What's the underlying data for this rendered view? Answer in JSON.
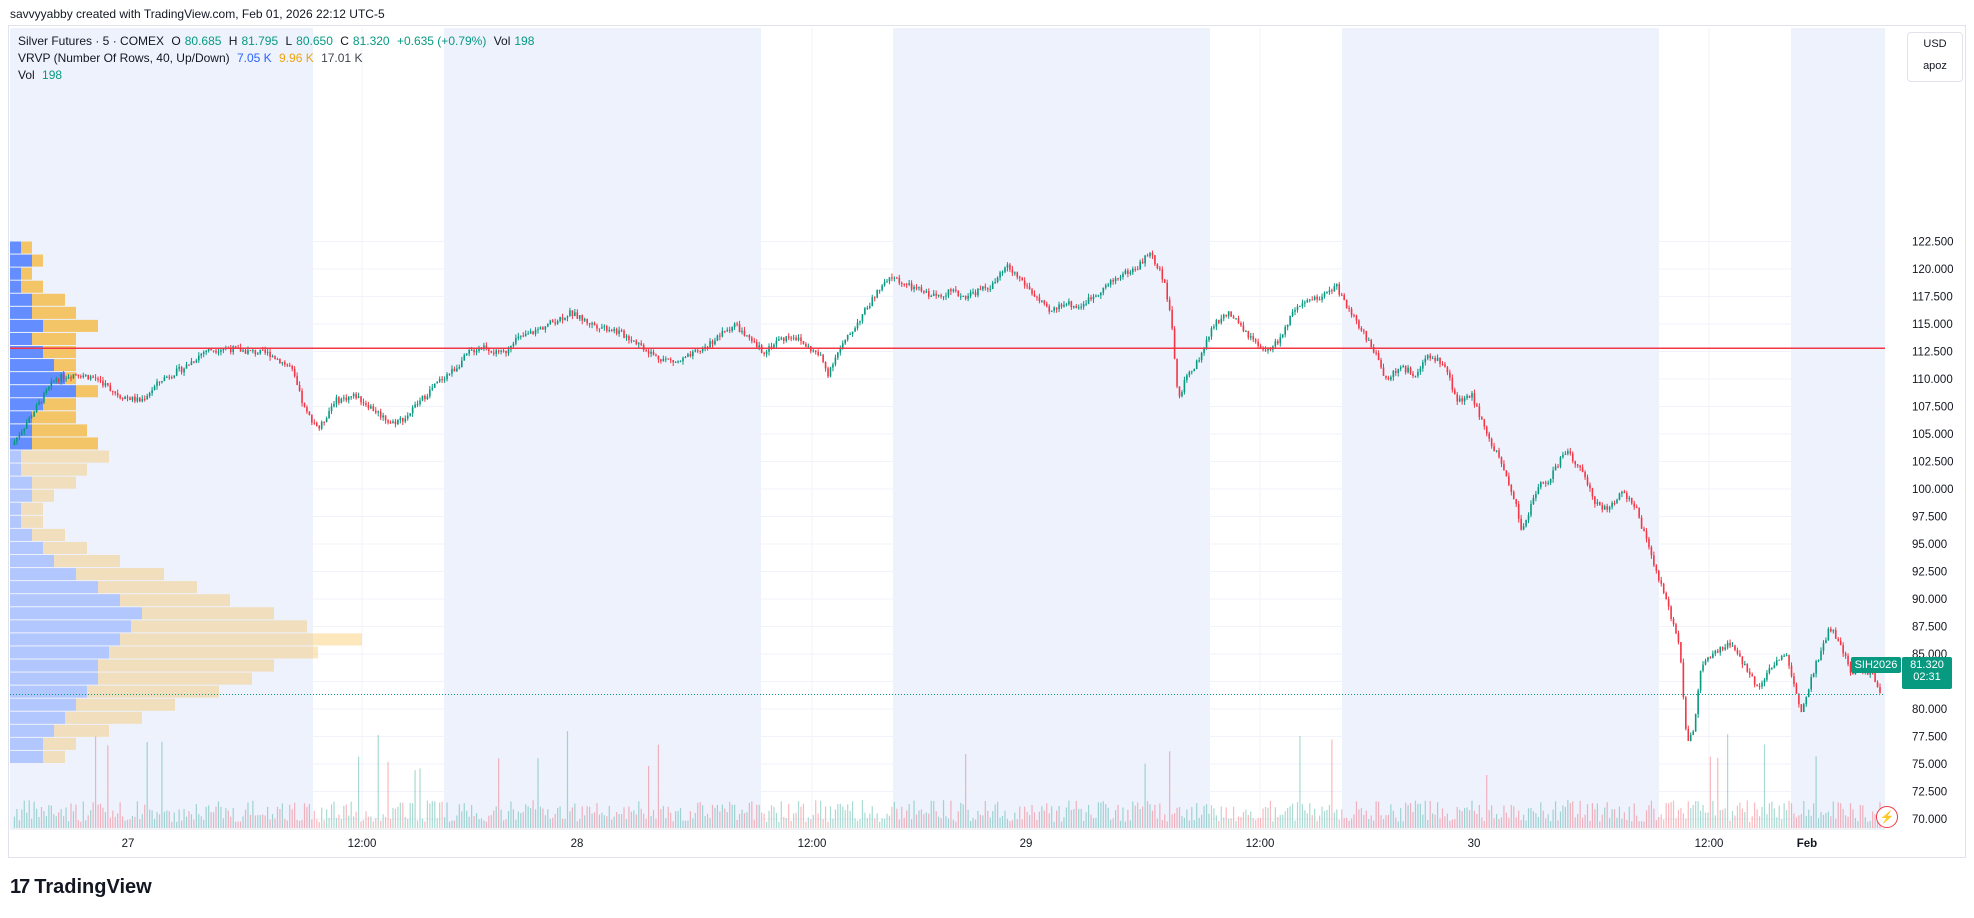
{
  "attribution": "savvyyabby created with TradingView.com, Feb 01, 2026 22:12 UTC-5",
  "legend": {
    "symbol": "Silver Futures · 5 · COMEX",
    "o_label": "O",
    "o_value": "80.685",
    "h_label": "H",
    "h_value": "81.795",
    "l_label": "L",
    "l_value": "80.650",
    "c_label": "C",
    "c_value": "81.320",
    "change": "+0.635 (+0.79%)",
    "vol_label": "Vol",
    "vol_value": "198",
    "vrvp_label": "VRVP (Number Of Rows, 40, Up/Down)",
    "vrvp_up": "7.05 K",
    "vrvp_down": "9.96 K",
    "vrvp_total": "17.01 K",
    "vol2_label": "Vol",
    "vol2_value": "198"
  },
  "unit_box": {
    "currency": "USD",
    "scale": "apoz"
  },
  "price_label": {
    "symbol": "SIH2026",
    "price": "81.320",
    "countdown": "02:31"
  },
  "footer": {
    "brand": "TradingView",
    "mark": "17"
  },
  "colors": {
    "up": "#089981",
    "down": "#f23645",
    "vp_up": "#2962ff",
    "vp_down": "#f7a600",
    "session": "#eef2fd",
    "hline": "#f23645"
  },
  "chart_data": {
    "type": "candlestick",
    "title": "Silver Futures · 5 · COMEX",
    "ylim": [
      69.0,
      124.0
    ],
    "y_ticks": [
      "122.500",
      "120.000",
      "117.500",
      "115.000",
      "112.500",
      "110.000",
      "107.500",
      "105.000",
      "102.500",
      "100.000",
      "97.500",
      "95.000",
      "92.500",
      "90.000",
      "87.500",
      "85.000",
      "82.500",
      "80.000",
      "77.500",
      "75.000",
      "72.500",
      "70.000"
    ],
    "x_ticks": [
      "27",
      "12:00",
      "28",
      "12:00",
      "29",
      "12:00",
      "30",
      "12:00",
      "Feb"
    ],
    "horizontal_line": 112.8,
    "last_price": 81.32,
    "price_path": [
      [
        0,
        104
      ],
      [
        3,
        107
      ],
      [
        6,
        110
      ],
      [
        9,
        110.5
      ],
      [
        12,
        110
      ],
      [
        15,
        108.5
      ],
      [
        18,
        108
      ],
      [
        21,
        110
      ],
      [
        24,
        111
      ],
      [
        27,
        112.6
      ],
      [
        30,
        112.8
      ],
      [
        33,
        112.5
      ],
      [
        36,
        112.3
      ],
      [
        39,
        111
      ],
      [
        41,
        107
      ],
      [
        43,
        105.5
      ],
      [
        45,
        108
      ],
      [
        48,
        108.5
      ],
      [
        51,
        107
      ],
      [
        53,
        106
      ],
      [
        55,
        106.5
      ],
      [
        57,
        108
      ],
      [
        60,
        110
      ],
      [
        62,
        111
      ],
      [
        64,
        112.5
      ],
      [
        66,
        113
      ],
      [
        68,
        112.2
      ],
      [
        69,
        112.5
      ],
      [
        70,
        113.5
      ],
      [
        72,
        114
      ],
      [
        75,
        115
      ],
      [
        78,
        116
      ],
      [
        81,
        115
      ],
      [
        84,
        114.5
      ],
      [
        87,
        113.5
      ],
      [
        90,
        112
      ],
      [
        93,
        111.5
      ],
      [
        96,
        112.5
      ],
      [
        99,
        114
      ],
      [
        101,
        115
      ],
      [
        103,
        113.5
      ],
      [
        105,
        112.5
      ],
      [
        107,
        113.5
      ],
      [
        109,
        114
      ],
      [
        111,
        113
      ],
      [
        113,
        112
      ],
      [
        114,
        110.5
      ],
      [
        115,
        112
      ],
      [
        117,
        114
      ],
      [
        119,
        116
      ],
      [
        121,
        118
      ],
      [
        123,
        119.3
      ],
      [
        125,
        118.5
      ],
      [
        127,
        118
      ],
      [
        129,
        117.5
      ],
      [
        131,
        118
      ],
      [
        133,
        117.5
      ],
      [
        135,
        118
      ],
      [
        137,
        118.5
      ],
      [
        139,
        120.2
      ],
      [
        141,
        119
      ],
      [
        143,
        117.5
      ],
      [
        145,
        116
      ],
      [
        147,
        117
      ],
      [
        149,
        116.5
      ],
      [
        151,
        117.5
      ],
      [
        153,
        118.5
      ],
      [
        155,
        119.5
      ],
      [
        157,
        120
      ],
      [
        159,
        121.5
      ],
      [
        161,
        119
      ],
      [
        162,
        115
      ],
      [
        163,
        108
      ],
      [
        164,
        110
      ],
      [
        166,
        112
      ],
      [
        168,
        115
      ],
      [
        170,
        116
      ],
      [
        172,
        114.5
      ],
      [
        174,
        113
      ],
      [
        175,
        112.3
      ],
      [
        177,
        113.5
      ],
      [
        179,
        116
      ],
      [
        181,
        117
      ],
      [
        183,
        117.5
      ],
      [
        185,
        118.5
      ],
      [
        187,
        116
      ],
      [
        189,
        114
      ],
      [
        190,
        113
      ],
      [
        192,
        110
      ],
      [
        194,
        111
      ],
      [
        196,
        110.5
      ],
      [
        198,
        112
      ],
      [
        200,
        111.5
      ],
      [
        202,
        108
      ],
      [
        204,
        108.5
      ],
      [
        206,
        105
      ],
      [
        208,
        102.5
      ],
      [
        210,
        99
      ],
      [
        211,
        96
      ],
      [
        213,
        100
      ],
      [
        215,
        101
      ],
      [
        217,
        103.5
      ],
      [
        219,
        102
      ],
      [
        221,
        99
      ],
      [
        223,
        98
      ],
      [
        225,
        100
      ],
      [
        227,
        98
      ],
      [
        229,
        94
      ],
      [
        231,
        90
      ],
      [
        233,
        86
      ],
      [
        234,
        77
      ],
      [
        235,
        78
      ],
      [
        236,
        84
      ],
      [
        238,
        85
      ],
      [
        240,
        86
      ],
      [
        242,
        84
      ],
      [
        244,
        82
      ],
      [
        246,
        84
      ],
      [
        248,
        85
      ],
      [
        249,
        82
      ],
      [
        250,
        80
      ],
      [
        252,
        84
      ],
      [
        254,
        87.5
      ],
      [
        256,
        85
      ],
      [
        257,
        83
      ],
      [
        258,
        84
      ],
      [
        260,
        83
      ],
      [
        261,
        81.32
      ]
    ],
    "volume_profile": {
      "price_min": 75.0,
      "price_max": 122.5,
      "up": [
        1,
        2,
        1,
        1,
        2,
        2,
        3,
        2,
        3,
        4,
        5,
        6,
        3,
        2,
        2,
        2,
        1,
        1,
        2,
        2,
        1,
        1,
        2,
        3,
        4,
        6,
        8,
        10,
        12,
        11,
        10,
        9,
        8,
        8,
        7,
        6,
        5,
        4,
        3,
        3
      ],
      "down": [
        1,
        1,
        1,
        2,
        3,
        4,
        5,
        4,
        3,
        2,
        1,
        2,
        3,
        4,
        5,
        6,
        8,
        6,
        4,
        2,
        2,
        2,
        3,
        4,
        6,
        8,
        9,
        10,
        12,
        16,
        22,
        19,
        16,
        14,
        12,
        9,
        7,
        5,
        3,
        2
      ]
    }
  }
}
